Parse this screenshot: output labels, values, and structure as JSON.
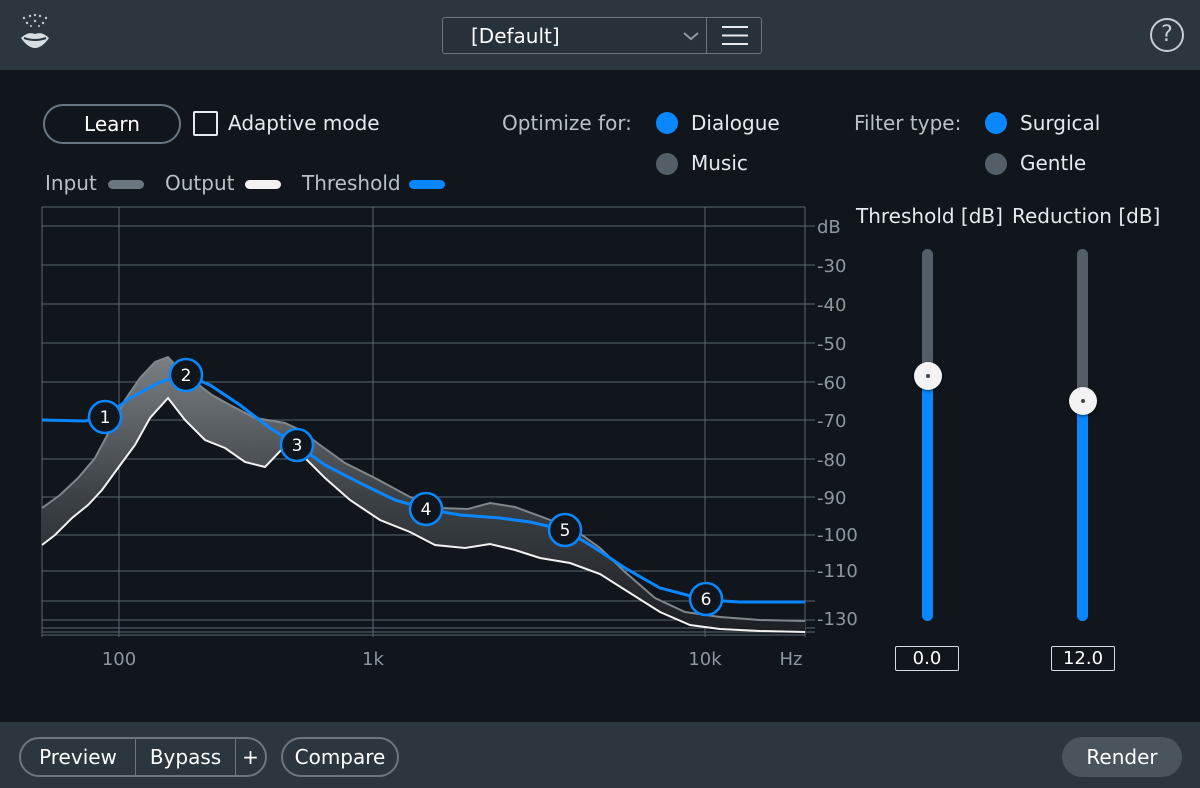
{
  "header": {
    "preset_name": "[Default]",
    "logo_icon": "mouth-sparkle-icon",
    "menu_icon": "hamburger-icon",
    "help_label": "?"
  },
  "controls": {
    "learn_label": "Learn",
    "adaptive_label": "Adaptive mode",
    "adaptive_checked": false,
    "optimize_label": "Optimize for:",
    "optimize_options": [
      "Dialogue",
      "Music"
    ],
    "optimize_selected": "Dialogue",
    "filter_label": "Filter type:",
    "filter_options": [
      "Surgical",
      "Gentle"
    ],
    "filter_selected": "Surgical"
  },
  "legend": {
    "input": "Input",
    "output": "Output",
    "threshold": "Threshold",
    "colors": {
      "input": "#6b7681",
      "output": "#f2f2f2",
      "threshold": "#0a87ff"
    }
  },
  "graph": {
    "db_axis_title": "dB",
    "db_ticks": [
      "-30",
      "-40",
      "-50",
      "-60",
      "-70",
      "-80",
      "-90",
      "-100",
      "-110",
      "-130"
    ],
    "freq_ticks": [
      "100",
      "1k",
      "10k"
    ],
    "freq_unit": "Hz",
    "nodes": [
      "1",
      "2",
      "3",
      "4",
      "5",
      "6"
    ]
  },
  "sliders": {
    "threshold": {
      "label": "Threshold [dB]",
      "value": "0.0"
    },
    "reduction": {
      "label": "Reduction [dB]",
      "value": "12.0"
    }
  },
  "footer": {
    "preview": "Preview",
    "bypass": "Bypass",
    "plus": "+",
    "compare": "Compare",
    "render": "Render"
  }
}
